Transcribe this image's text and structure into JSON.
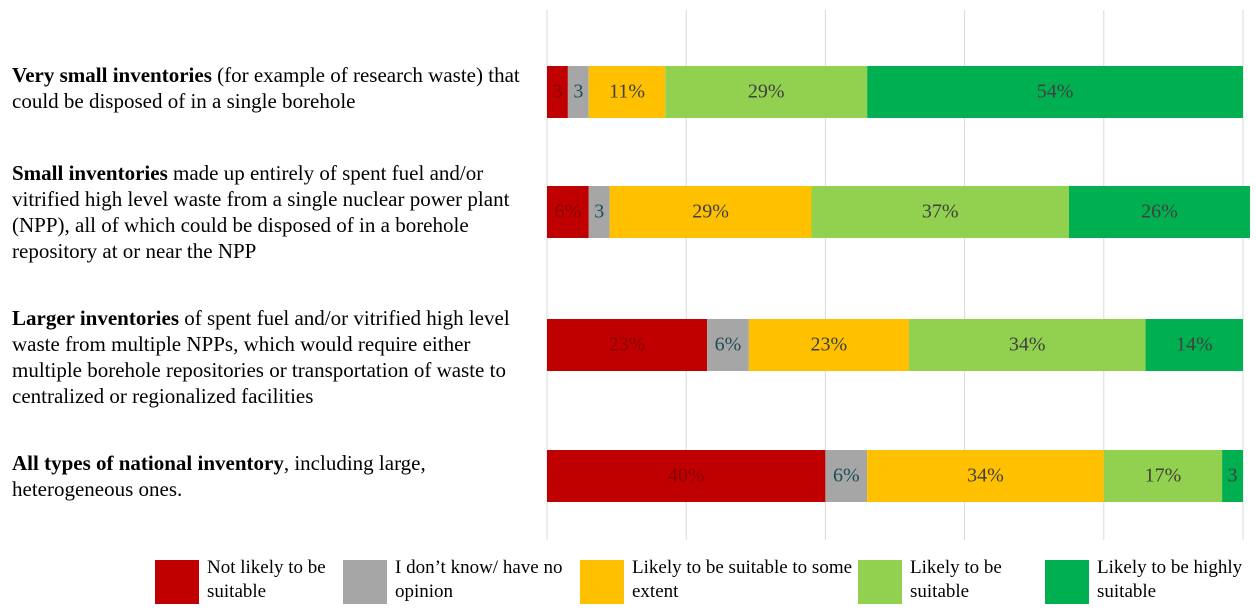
{
  "chart_data": {
    "type": "stacked_barh",
    "categories": [
      {
        "bold": "Very small inventories",
        "text": " (for example of research waste) that could be disposed of in a single borehole"
      },
      {
        "bold": "Small inventories",
        "text": " made up entirely of spent fuel and/or vitrified high level waste from a single nuclear power plant (NPP), all of which could be disposed of in a borehole repository at or near the NPP"
      },
      {
        "bold": "Larger inventories",
        "text": " of spent fuel and/or vitrified high level waste from multiple NPPs, which would require either multiple borehole repositories or transportation of waste to centralized or regionalized facilities"
      },
      {
        "bold": "All types of national inventory",
        "text": ", including large, heterogeneous ones."
      }
    ],
    "series": [
      {
        "name": "Not likely to be suitable",
        "color": "#c00000",
        "values": [
          3,
          6,
          23,
          40
        ],
        "value_labels": [
          "3",
          "6%",
          "23%",
          "40%"
        ]
      },
      {
        "name": "I don’t know/ have no opinion",
        "color": "#a6a6a6",
        "values": [
          3,
          3,
          6,
          6
        ],
        "value_labels": [
          "3",
          "3",
          "6%",
          "6%"
        ]
      },
      {
        "name": "Likely to be suitable to some extent",
        "color": "#ffc000",
        "values": [
          11,
          29,
          23,
          34
        ],
        "value_labels": [
          "11%",
          "29%",
          "23%",
          "34%"
        ]
      },
      {
        "name": "Likely to be suitable",
        "color": "#92d050",
        "values": [
          29,
          37,
          34,
          17
        ],
        "value_labels": [
          "29%",
          "37%",
          "34%",
          "17%"
        ]
      },
      {
        "name": "Likely to be highly suitable",
        "color": "#00b050",
        "values": [
          54,
          26,
          14,
          3
        ],
        "value_labels": [
          "54%",
          "26%",
          "14%",
          "3"
        ]
      }
    ],
    "xlim": [
      0,
      100
    ],
    "xticks": [
      0,
      20,
      40,
      60,
      80,
      100
    ],
    "grid": true,
    "legend": "bottom"
  }
}
